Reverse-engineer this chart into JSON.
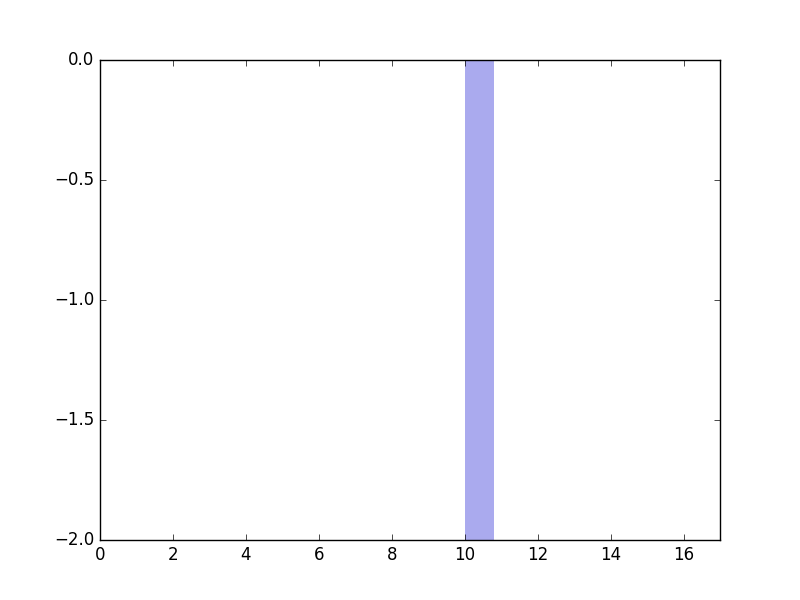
{
  "bar_x": 10,
  "bar_width": 0.8,
  "bar_height": -2.0,
  "bar_color": "#aaaaee",
  "xlim": [
    0,
    17
  ],
  "ylim": [
    -2.0,
    0.0
  ],
  "xticks": [
    0,
    2,
    4,
    6,
    8,
    10,
    12,
    14,
    16
  ],
  "yticks": [
    0.0,
    -0.5,
    -1.0,
    -1.5,
    -2.0
  ],
  "background_color": "#ffffff",
  "figsize": [
    8.0,
    6.0
  ],
  "dpi": 100
}
